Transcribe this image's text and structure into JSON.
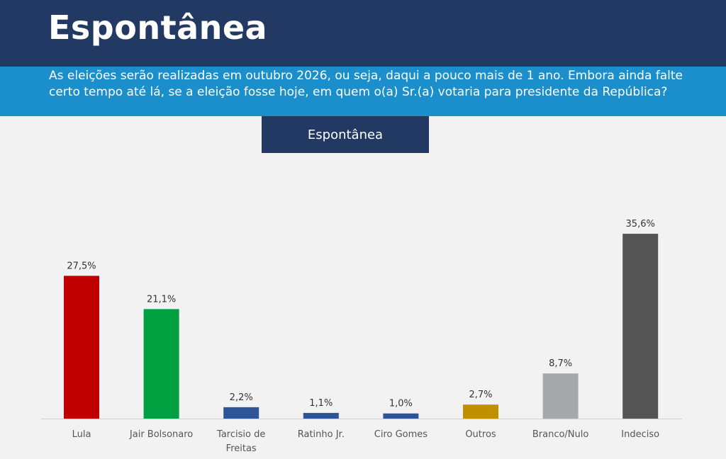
{
  "header": {
    "title": "Espontânea",
    "question": "As eleições serão realizadas em outubro 2026, ou seja, daqui a pouco mais de 1 ano. Embora ainda falte certo tempo até lá, se a eleição fosse hoje, em quem o(a) Sr.(a) votaria para presidente da República?"
  },
  "chart_label": "Espontânea",
  "chart_data": {
    "type": "bar",
    "title": "Espontânea",
    "xlabel": "",
    "ylabel": "",
    "ylim": [
      0,
      40
    ],
    "grid": false,
    "categories": [
      [
        "Lula"
      ],
      [
        "Jair Bolsonaro"
      ],
      [
        "Tarcisio de",
        "Freitas"
      ],
      [
        "Ratinho Jr."
      ],
      [
        "Ciro Gomes"
      ],
      [
        "Outros"
      ],
      [
        "Branco/Nulo"
      ],
      [
        "Indeciso"
      ]
    ],
    "values": [
      27.5,
      21.1,
      2.2,
      1.1,
      1.0,
      2.7,
      8.7,
      35.6
    ],
    "value_labels": [
      "27,5%",
      "21,1%",
      "2,2%",
      "1,1%",
      "1,0%",
      "2,7%",
      "8,7%",
      "35,6%"
    ],
    "colors": [
      "#c00000",
      "#00a040",
      "#2e5597",
      "#2e5597",
      "#2e5597",
      "#c09000",
      "#a6a9aa",
      "#555555"
    ]
  }
}
